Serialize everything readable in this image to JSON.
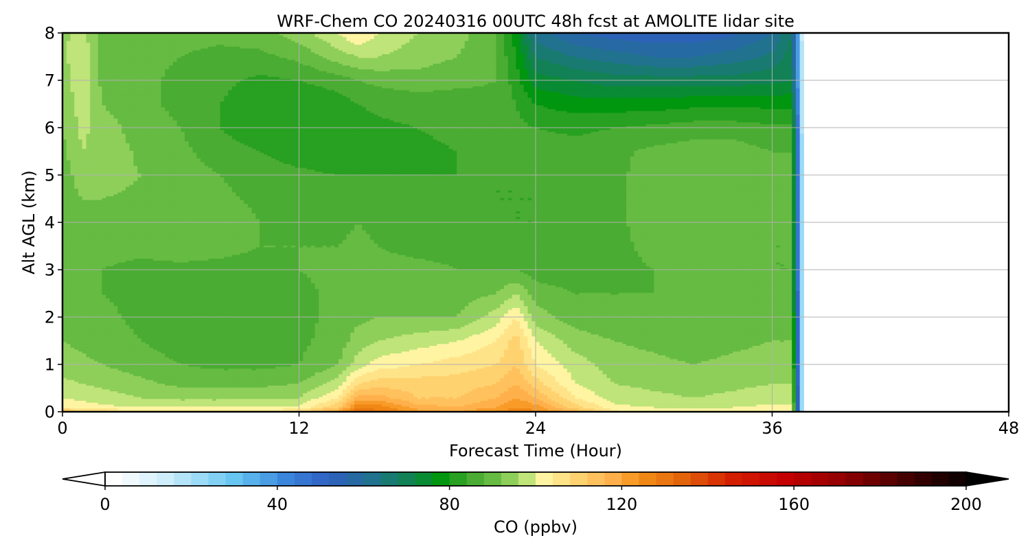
{
  "chart_data": {
    "type": "heatmap",
    "title": "WRF-Chem CO  20240316 00UTC 48h fcst at AMOLITE lidar site",
    "xlabel": "Forecast Time (Hour)",
    "ylabel": "Alt AGL (km)",
    "xlim": [
      0,
      48
    ],
    "ylim": [
      0,
      8
    ],
    "xticks": [
      0,
      12,
      24,
      36,
      48
    ],
    "yticks": [
      0,
      1,
      2,
      3,
      4,
      5,
      6,
      7,
      8
    ],
    "grid": true,
    "data_end_hour": 37.6,
    "z_units": "ppbv",
    "x": [
      0,
      1,
      2,
      4,
      6,
      8,
      10,
      12,
      14,
      15,
      16,
      18,
      20,
      22,
      23,
      24,
      26,
      28,
      30,
      32,
      34,
      36,
      37
    ],
    "y": [
      0,
      0.1,
      0.3,
      0.6,
      1,
      1.5,
      2,
      2.5,
      3,
      3.5,
      4,
      4.5,
      5,
      5.5,
      6,
      6.5,
      7,
      7.5,
      8
    ],
    "z": [
      [
        118,
        112,
        110,
        108,
        108,
        108,
        108,
        110,
        122,
        132,
        130,
        122,
        120,
        125,
        128,
        126,
        118,
        105,
        103,
        102,
        103,
        104,
        104
      ],
      [
        104,
        102,
        101,
        100,
        100,
        100,
        100,
        101,
        112,
        128,
        126,
        118,
        116,
        120,
        124,
        122,
        110,
        101,
        100,
        99,
        100,
        101,
        101
      ],
      [
        100,
        99,
        98,
        96,
        95,
        95,
        95,
        96,
        104,
        118,
        118,
        112,
        112,
        116,
        120,
        116,
        104,
        98,
        97,
        96,
        97,
        98,
        98
      ],
      [
        97,
        96,
        95,
        93,
        91,
        91,
        91,
        92,
        98,
        108,
        110,
        110,
        110,
        112,
        116,
        110,
        100,
        96,
        95,
        94,
        95,
        96,
        96
      ],
      [
        94,
        93,
        92,
        90,
        88,
        87,
        87,
        88,
        92,
        98,
        102,
        104,
        106,
        108,
        112,
        104,
        98,
        94,
        93,
        92,
        93,
        94,
        94
      ],
      [
        92,
        91,
        90,
        88,
        86,
        86,
        86,
        87,
        90,
        94,
        96,
        98,
        100,
        104,
        110,
        100,
        94,
        92,
        91,
        90,
        91,
        92,
        92
      ],
      [
        90,
        90,
        89,
        87,
        86,
        86,
        86,
        87,
        89,
        91,
        92,
        92,
        92,
        98,
        104,
        94,
        90,
        89,
        89,
        89,
        90,
        90,
        90
      ],
      [
        89,
        89,
        88,
        87,
        86,
        86,
        86,
        87,
        89,
        90,
        90,
        90,
        90,
        92,
        96,
        90,
        88,
        88,
        88,
        89,
        89,
        89,
        89
      ],
      [
        88,
        88,
        88,
        87,
        87,
        87,
        87,
        88,
        89,
        90,
        89,
        89,
        88,
        88,
        88,
        86,
        86,
        87,
        88,
        89,
        89,
        88,
        88
      ],
      [
        88,
        89,
        89,
        89,
        90,
        89,
        88,
        88,
        88,
        89,
        88,
        87,
        87,
        86,
        85,
        85,
        85,
        87,
        89,
        90,
        90,
        88,
        88
      ],
      [
        89,
        90,
        90,
        90,
        91,
        91,
        88,
        87,
        87,
        88,
        87,
        86,
        85,
        85,
        84,
        84,
        85,
        87,
        90,
        91,
        91,
        89,
        88
      ],
      [
        90,
        92,
        92,
        91,
        91,
        89,
        87,
        86,
        86,
        86,
        86,
        85,
        85,
        84,
        84,
        84,
        85,
        87,
        90,
        91,
        92,
        89,
        88
      ],
      [
        90,
        94,
        94,
        92,
        90,
        88,
        86,
        85,
        84,
        84,
        84,
        84,
        84,
        84,
        84,
        84,
        85,
        87,
        90,
        91,
        92,
        89,
        88
      ],
      [
        91,
        96,
        95,
        91,
        89,
        86,
        84,
        82,
        81,
        81,
        82,
        83,
        84,
        85,
        86,
        86,
        86,
        87,
        89,
        90,
        90,
        88,
        88
      ],
      [
        92,
        97,
        94,
        90,
        88,
        84,
        81,
        80,
        80,
        82,
        83,
        84,
        85,
        86,
        85,
        84,
        83,
        84,
        85,
        86,
        86,
        85,
        85
      ],
      [
        93,
        98,
        92,
        89,
        87,
        84,
        81,
        80,
        82,
        84,
        85,
        86,
        86,
        87,
        84,
        80,
        78,
        78,
        78,
        79,
        79,
        79,
        79
      ],
      [
        94,
        99,
        91,
        89,
        87,
        85,
        83,
        84,
        86,
        88,
        89,
        90,
        89,
        88,
        82,
        74,
        72,
        70,
        70,
        70,
        70,
        71,
        72
      ],
      [
        95,
        99,
        91,
        89,
        88,
        87,
        87,
        89,
        94,
        96,
        96,
        94,
        92,
        88,
        80,
        68,
        64,
        62,
        60,
        60,
        62,
        65,
        70
      ],
      [
        95,
        98,
        90,
        89,
        89,
        89,
        90,
        94,
        100,
        104,
        100,
        96,
        94,
        88,
        78,
        62,
        56,
        54,
        53,
        53,
        55,
        60,
        68
      ]
    ],
    "colorbar": {
      "label": "CO  (ppbv)",
      "min": 0,
      "max": 200,
      "step": 4,
      "ticks": [
        0,
        40,
        80,
        120,
        160,
        200
      ],
      "extend": "both",
      "colors": [
        {
          "v": 0,
          "c": "#ffffff"
        },
        {
          "v": 12,
          "c": "#cfeefb"
        },
        {
          "v": 28,
          "c": "#68c7f2"
        },
        {
          "v": 40,
          "c": "#3b86dc"
        },
        {
          "v": 50,
          "c": "#2f5fc0"
        },
        {
          "v": 60,
          "c": "#21728f"
        },
        {
          "v": 70,
          "c": "#0e8546"
        },
        {
          "v": 76,
          "c": "#00960f"
        },
        {
          "v": 82,
          "c": "#3ca52a"
        },
        {
          "v": 88,
          "c": "#66bb42"
        },
        {
          "v": 94,
          "c": "#a2d966"
        },
        {
          "v": 98,
          "c": "#dcee8c"
        },
        {
          "v": 100,
          "c": "#fff4a2"
        },
        {
          "v": 108,
          "c": "#ffd270"
        },
        {
          "v": 116,
          "c": "#ffb04a"
        },
        {
          "v": 122,
          "c": "#f49018"
        },
        {
          "v": 132,
          "c": "#e2640a"
        },
        {
          "v": 144,
          "c": "#d41e00"
        },
        {
          "v": 156,
          "c": "#c40000"
        },
        {
          "v": 170,
          "c": "#8e0000"
        },
        {
          "v": 186,
          "c": "#3a0000"
        },
        {
          "v": 200,
          "c": "#000000"
        }
      ]
    }
  }
}
